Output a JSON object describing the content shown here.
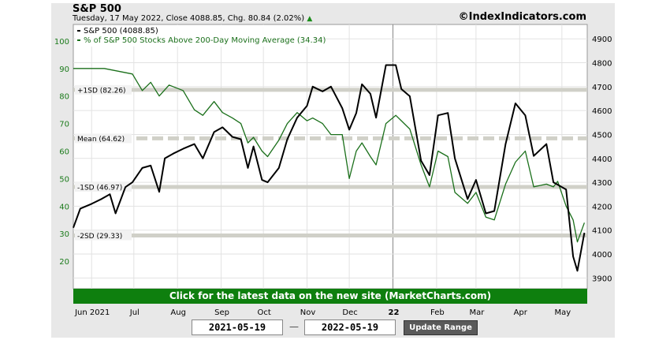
{
  "header": {
    "title": "S&P 500",
    "subtitle": "Tuesday, 17 May 2022, Close 4088.85, Chg. 80.84 (2.02%)",
    "site": "©IndexIndicators.com"
  },
  "banner": "Click for the latest data on the new site (MarketCharts.com)",
  "controls": {
    "start_date": "2021-05-19",
    "separator": "—",
    "end_date": "2022-05-19",
    "update_label": "Update Range"
  },
  "colors": {
    "sp500": "#000000",
    "pct": "#1a6f1a",
    "ref_band": "#d0d0c8",
    "banner": "#0e7f0e"
  },
  "chart_data": {
    "type": "line",
    "legend": [
      "S&P 500 (4088.85)",
      "% of S&P 500 Stocks Above 200-Day Moving Average (34.34)"
    ],
    "x_tick_labels": [
      "Jun 2021",
      "Jul",
      "Aug",
      "Sep",
      "Oct",
      "Nov",
      "Dec",
      "22",
      "Feb",
      "Mar",
      "Apr",
      "May"
    ],
    "left_axis": {
      "ticks": [
        20,
        30,
        40,
        50,
        60,
        70,
        80,
        90,
        100
      ],
      "ylim": [
        10,
        106
      ]
    },
    "right_axis": {
      "ticks": [
        3900,
        4000,
        4100,
        4200,
        4300,
        4400,
        4500,
        4600,
        4700,
        4800,
        4900
      ],
      "ylim": [
        3855,
        4960
      ]
    },
    "reference_lines": [
      {
        "label": "+1SD (82.26)",
        "value": 82.26,
        "style": "solid"
      },
      {
        "label": "Mean (64.62)",
        "value": 64.62,
        "style": "dashed"
      },
      {
        "label": "-1SD (46.97)",
        "value": 46.97,
        "style": "solid"
      },
      {
        "label": "-2SD (29.33)",
        "value": 29.33,
        "style": "solid"
      }
    ],
    "vertical_marker": "22",
    "grid": true,
    "series": [
      {
        "name": "S&P 500 (4088.85)",
        "axis": "right",
        "x": [
          "2021-05-19",
          "2021-05-24",
          "2021-06-01",
          "2021-06-08",
          "2021-06-14",
          "2021-06-18",
          "2021-06-25",
          "2021-06-30",
          "2021-07-07",
          "2021-07-13",
          "2021-07-19",
          "2021-07-23",
          "2021-07-29",
          "2021-08-05",
          "2021-08-13",
          "2021-08-19",
          "2021-08-27",
          "2021-09-02",
          "2021-09-09",
          "2021-09-15",
          "2021-09-20",
          "2021-09-24",
          "2021-09-30",
          "2021-10-04",
          "2021-10-12",
          "2021-10-18",
          "2021-10-25",
          "2021-11-01",
          "2021-11-05",
          "2021-11-12",
          "2021-11-18",
          "2021-11-26",
          "2021-12-01",
          "2021-12-06",
          "2021-12-10",
          "2021-12-16",
          "2021-12-20",
          "2021-12-27",
          "2022-01-03",
          "2022-01-07",
          "2022-01-13",
          "2022-01-21",
          "2022-01-27",
          "2022-02-02",
          "2022-02-09",
          "2022-02-14",
          "2022-02-23",
          "2022-03-01",
          "2022-03-08",
          "2022-03-14",
          "2022-03-22",
          "2022-03-29",
          "2022-04-05",
          "2022-04-11",
          "2022-04-20",
          "2022-04-25",
          "2022-04-28",
          "2022-05-04",
          "2022-05-09",
          "2022-05-12",
          "2022-05-17"
        ],
        "values": [
          4110,
          4190,
          4210,
          4230,
          4250,
          4170,
          4280,
          4300,
          4360,
          4370,
          4260,
          4400,
          4420,
          4440,
          4460,
          4400,
          4510,
          4530,
          4490,
          4480,
          4360,
          4450,
          4310,
          4300,
          4360,
          4480,
          4570,
          4620,
          4700,
          4680,
          4700,
          4610,
          4520,
          4590,
          4710,
          4670,
          4570,
          4790,
          4790,
          4690,
          4660,
          4390,
          4330,
          4580,
          4590,
          4400,
          4230,
          4310,
          4170,
          4180,
          4460,
          4630,
          4580,
          4410,
          4460,
          4300,
          4290,
          4270,
          3990,
          3930,
          4089
        ]
      },
      {
        "name": "% of S&P 500 Stocks Above 200-Day Moving Average (34.34)",
        "axis": "left",
        "x": [
          "2021-05-19",
          "2021-06-01",
          "2021-06-10",
          "2021-06-20",
          "2021-06-30",
          "2021-07-07",
          "2021-07-13",
          "2021-07-19",
          "2021-07-26",
          "2021-08-05",
          "2021-08-13",
          "2021-08-19",
          "2021-08-27",
          "2021-09-02",
          "2021-09-09",
          "2021-09-15",
          "2021-09-20",
          "2021-09-24",
          "2021-09-30",
          "2021-10-04",
          "2021-10-12",
          "2021-10-18",
          "2021-10-25",
          "2021-11-01",
          "2021-11-05",
          "2021-11-12",
          "2021-11-18",
          "2021-11-26",
          "2021-12-01",
          "2021-12-06",
          "2021-12-10",
          "2021-12-16",
          "2021-12-20",
          "2021-12-27",
          "2022-01-03",
          "2022-01-07",
          "2022-01-13",
          "2022-01-21",
          "2022-01-27",
          "2022-02-02",
          "2022-02-09",
          "2022-02-14",
          "2022-02-23",
          "2022-03-01",
          "2022-03-08",
          "2022-03-14",
          "2022-03-22",
          "2022-03-29",
          "2022-04-05",
          "2022-04-11",
          "2022-04-20",
          "2022-04-25",
          "2022-04-28",
          "2022-05-04",
          "2022-05-09",
          "2022-05-12",
          "2022-05-17"
        ],
        "values": [
          90,
          90,
          90,
          89,
          88,
          82,
          85,
          80,
          84,
          82,
          75,
          73,
          78,
          74,
          72,
          70,
          63,
          65,
          60,
          58,
          64,
          70,
          74,
          71,
          72,
          70,
          66,
          66,
          50,
          60,
          63,
          58,
          55,
          70,
          73,
          71,
          68,
          55,
          47,
          60,
          58,
          45,
          41,
          45,
          36,
          35,
          48,
          56,
          60,
          47,
          48,
          47,
          49,
          40,
          35,
          27,
          34
        ]
      }
    ]
  }
}
